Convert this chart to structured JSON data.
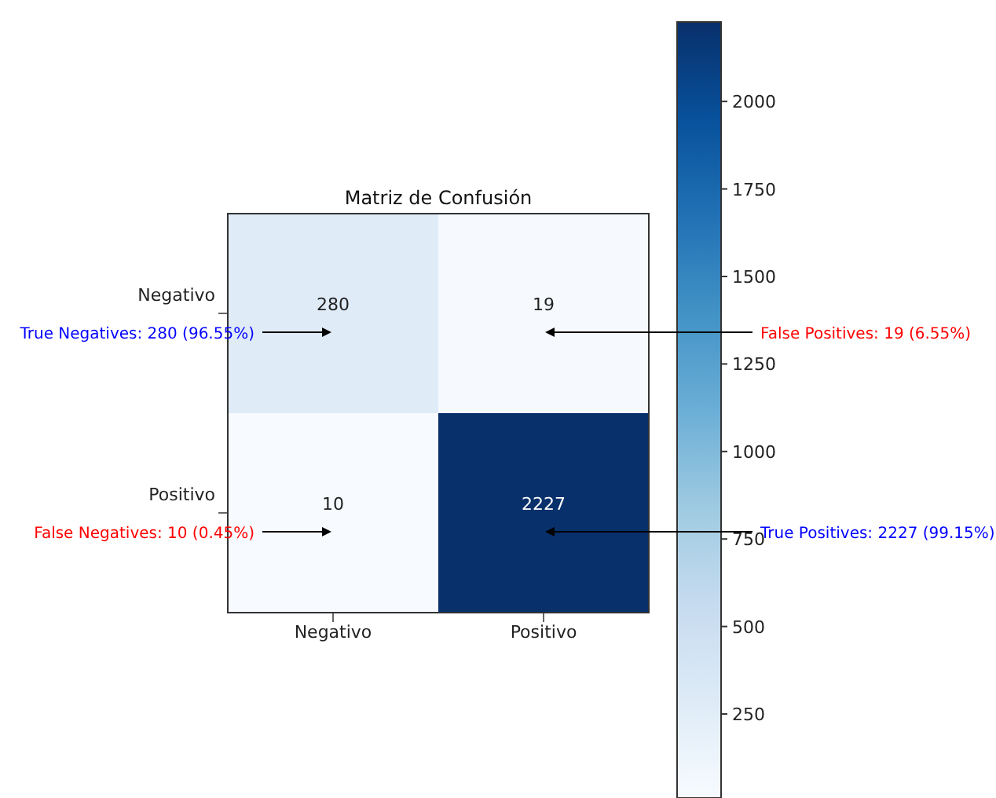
{
  "chart_data": {
    "type": "heatmap",
    "title": "Matriz de Confusión",
    "categories": [
      "Negativo",
      "Positivo"
    ],
    "y_categories": [
      "Negativo",
      "Positivo"
    ],
    "cells": [
      [
        280,
        19
      ],
      [
        10,
        2227
      ]
    ],
    "data_labels": true,
    "clim": [
      10,
      2227
    ],
    "cticks": [
      250,
      500,
      750,
      1000,
      1250,
      1500,
      1750,
      2000
    ],
    "annotations": [
      "True Negatives: 280 (96.55%)",
      "False Positives: 19 (6.55%)",
      "False Negatives: 10 (0.45%)",
      "True Positives: 2227 (99.15%)"
    ]
  }
}
